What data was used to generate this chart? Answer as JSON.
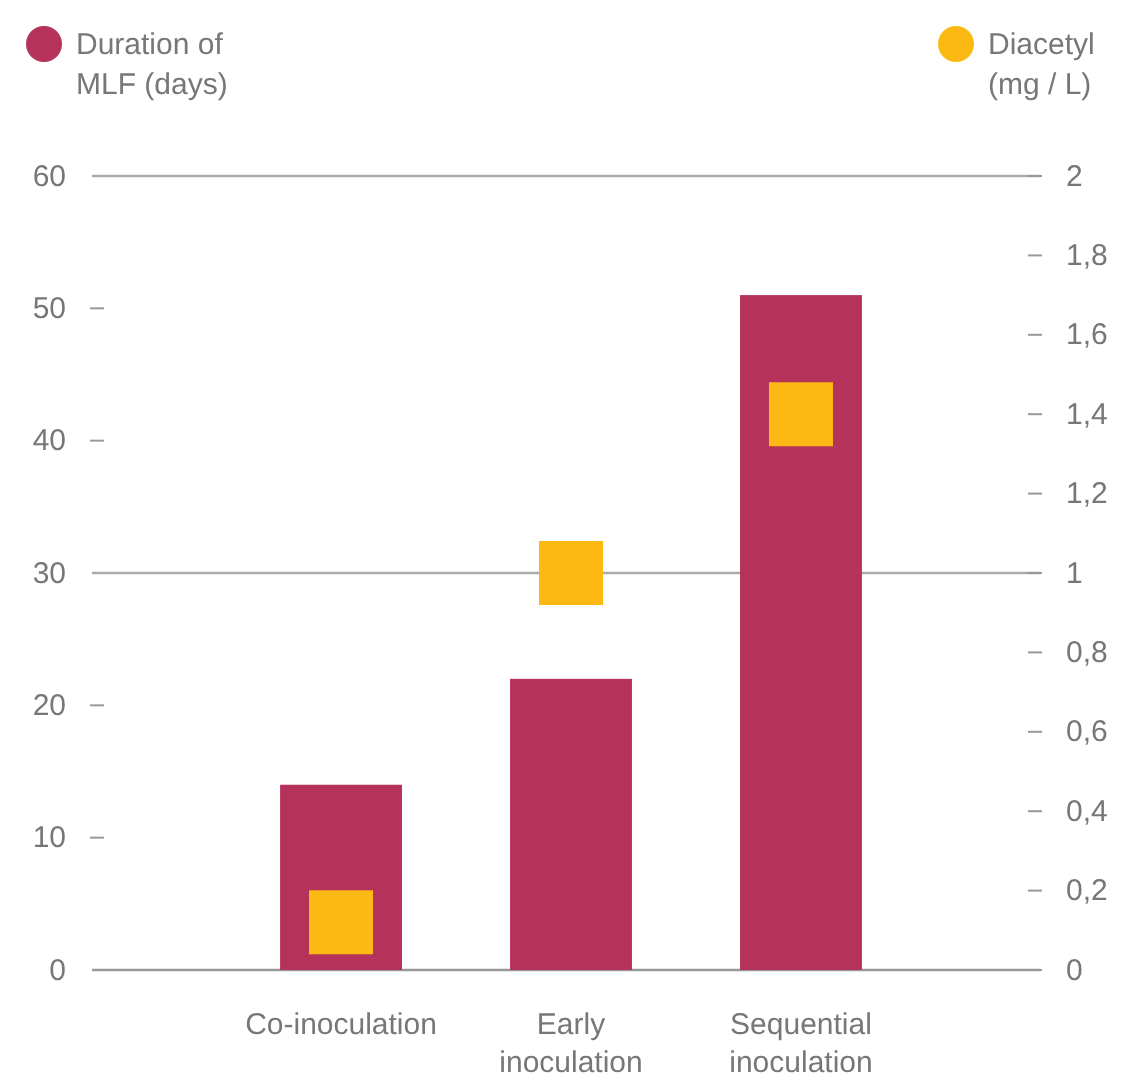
{
  "chart_data": {
    "type": "bar",
    "categories": [
      "Co-inoculation",
      "Early inoculation",
      "Sequential inoculation"
    ],
    "series": [
      {
        "name": "Duration of MLF (days)",
        "color": "#b5325a",
        "values": [
          14,
          22,
          51
        ]
      },
      {
        "name": "Diacetyl (mg / L)",
        "color": "#fdb913",
        "type": "scatter",
        "axis": "y2",
        "values": [
          0.12,
          1.0,
          1.4
        ]
      }
    ],
    "ylim": [
      0,
      60
    ],
    "yticks": [
      0,
      10,
      20,
      30,
      40,
      50,
      60
    ],
    "y2lim": [
      0,
      2
    ],
    "y2ticks": [
      0,
      {
        "value": 0.2,
        "label": "0,2"
      },
      {
        "value": 0.4,
        "label": "0,4"
      },
      {
        "value": 0.6,
        "label": "0,6"
      },
      {
        "value": 0.8,
        "label": "0,8"
      },
      1,
      {
        "value": 1.2,
        "label": "1,2"
      },
      {
        "value": 1.4,
        "label": "1,4"
      },
      {
        "value": 1.6,
        "label": "1,6"
      },
      {
        "value": 1.8,
        "label": "1,8"
      },
      2
    ],
    "ref_lines": [
      {
        "axis": "y",
        "value": 30,
        "color": "#aaaaaa"
      }
    ],
    "marker": "square",
    "legend": "top"
  }
}
